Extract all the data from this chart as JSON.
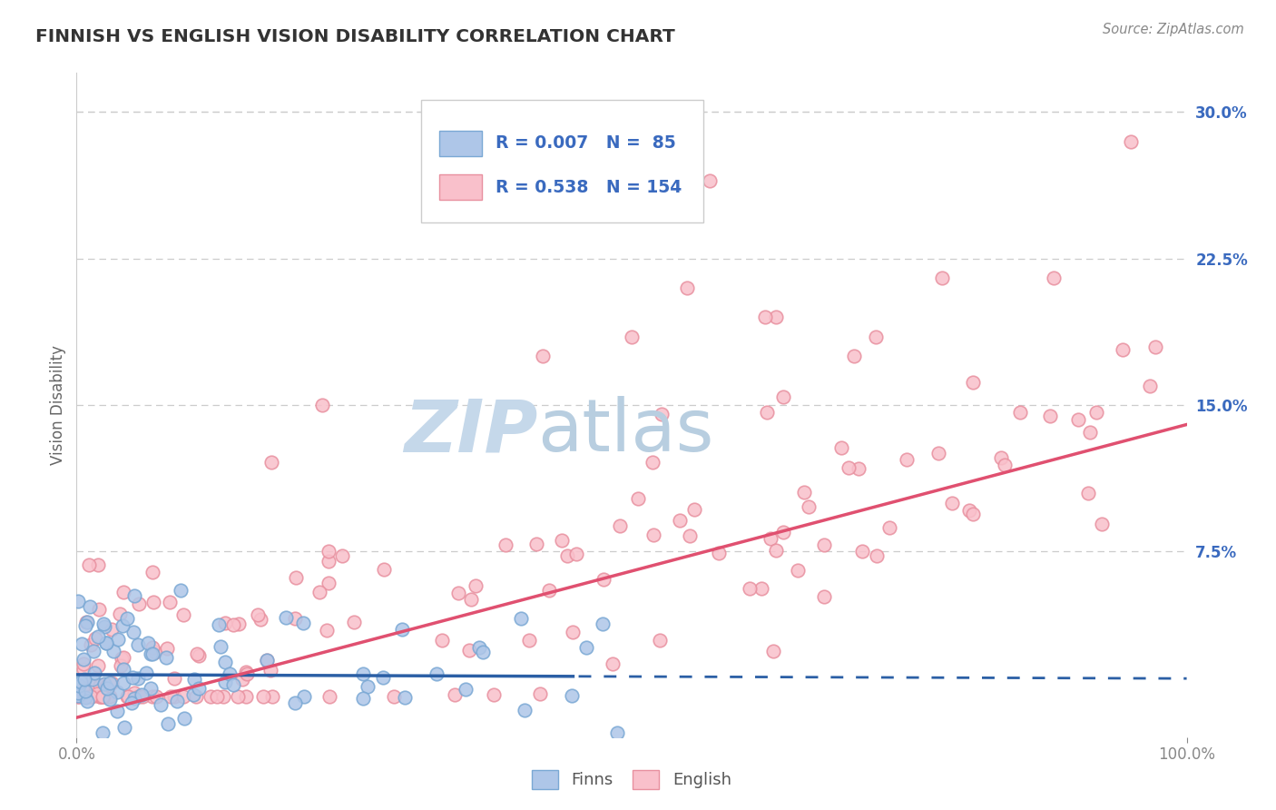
{
  "title": "FINNISH VS ENGLISH VISION DISABILITY CORRELATION CHART",
  "source_text": "Source: ZipAtlas.com",
  "ylabel": "Vision Disability",
  "xlim": [
    0,
    1.0
  ],
  "ylim": [
    -0.02,
    0.32
  ],
  "ytick_positions": [
    0.0,
    0.075,
    0.15,
    0.225,
    0.3
  ],
  "ytick_labels": [
    "",
    "7.5%",
    "15.0%",
    "22.5%",
    "30.0%"
  ],
  "legend_r": [
    "0.007",
    "0.538"
  ],
  "legend_n": [
    "85",
    "154"
  ],
  "finn_face_color": "#aec6e8",
  "finn_edge_color": "#7aa8d4",
  "english_face_color": "#f9c0cb",
  "english_edge_color": "#e8909f",
  "finn_line_color": "#2b5fa5",
  "english_line_color": "#e05070",
  "text_color": "#3a6abf",
  "grid_color": "#cccccc",
  "background_color": "#ffffff",
  "watermark_zip_color": "#c5d8ea",
  "watermark_atlas_color": "#b8cee0"
}
